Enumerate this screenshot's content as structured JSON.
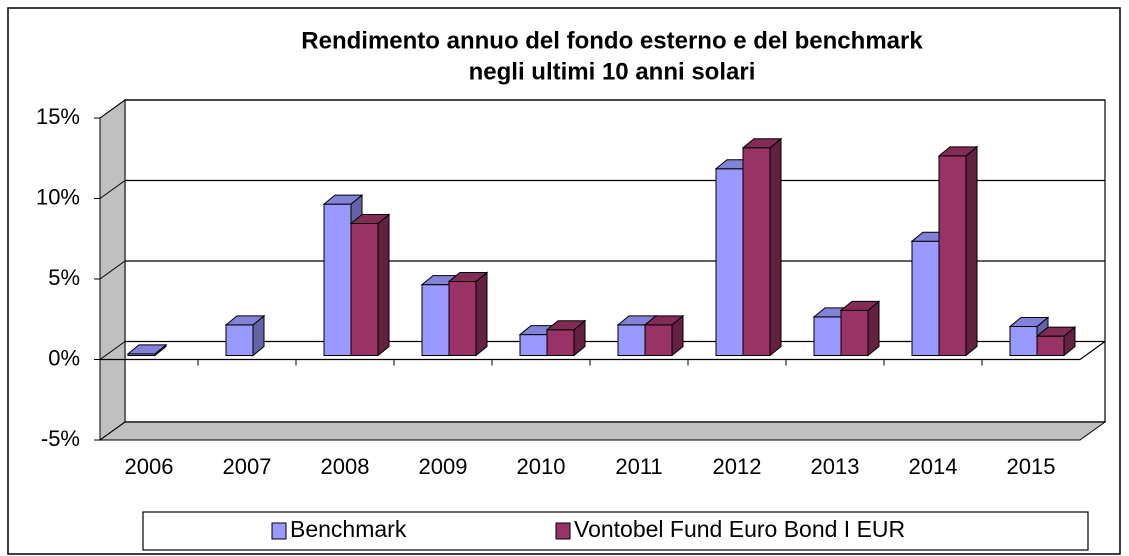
{
  "chart_data": {
    "type": "bar",
    "title": "Rendimento annuo del fondo esterno e del benchmark",
    "subtitle": "negli ultimi 10 anni solari",
    "categories": [
      "2006",
      "2007",
      "2008",
      "2009",
      "2010",
      "2011",
      "2012",
      "2013",
      "2014",
      "2015"
    ],
    "series": [
      {
        "name": "Benchmark",
        "color": "#9999ff",
        "values": [
          0.1,
          1.9,
          9.4,
          4.4,
          1.3,
          1.9,
          11.6,
          2.4,
          7.1,
          1.8
        ]
      },
      {
        "name": "Vontobel Fund Euro Bond I EUR",
        "color": "#993366",
        "values": [
          null,
          null,
          8.2,
          4.6,
          1.6,
          1.9,
          12.9,
          2.8,
          12.4,
          1.2
        ]
      }
    ],
    "ylim": [
      -5,
      15
    ],
    "yticks": [
      {
        "value": -5,
        "label": "-5%"
      },
      {
        "value": 0,
        "label": "0%"
      },
      {
        "value": 5,
        "label": "5%"
      },
      {
        "value": 10,
        "label": "10%"
      },
      {
        "value": 15,
        "label": "15%"
      }
    ],
    "grid": true,
    "legend": "bottom"
  }
}
